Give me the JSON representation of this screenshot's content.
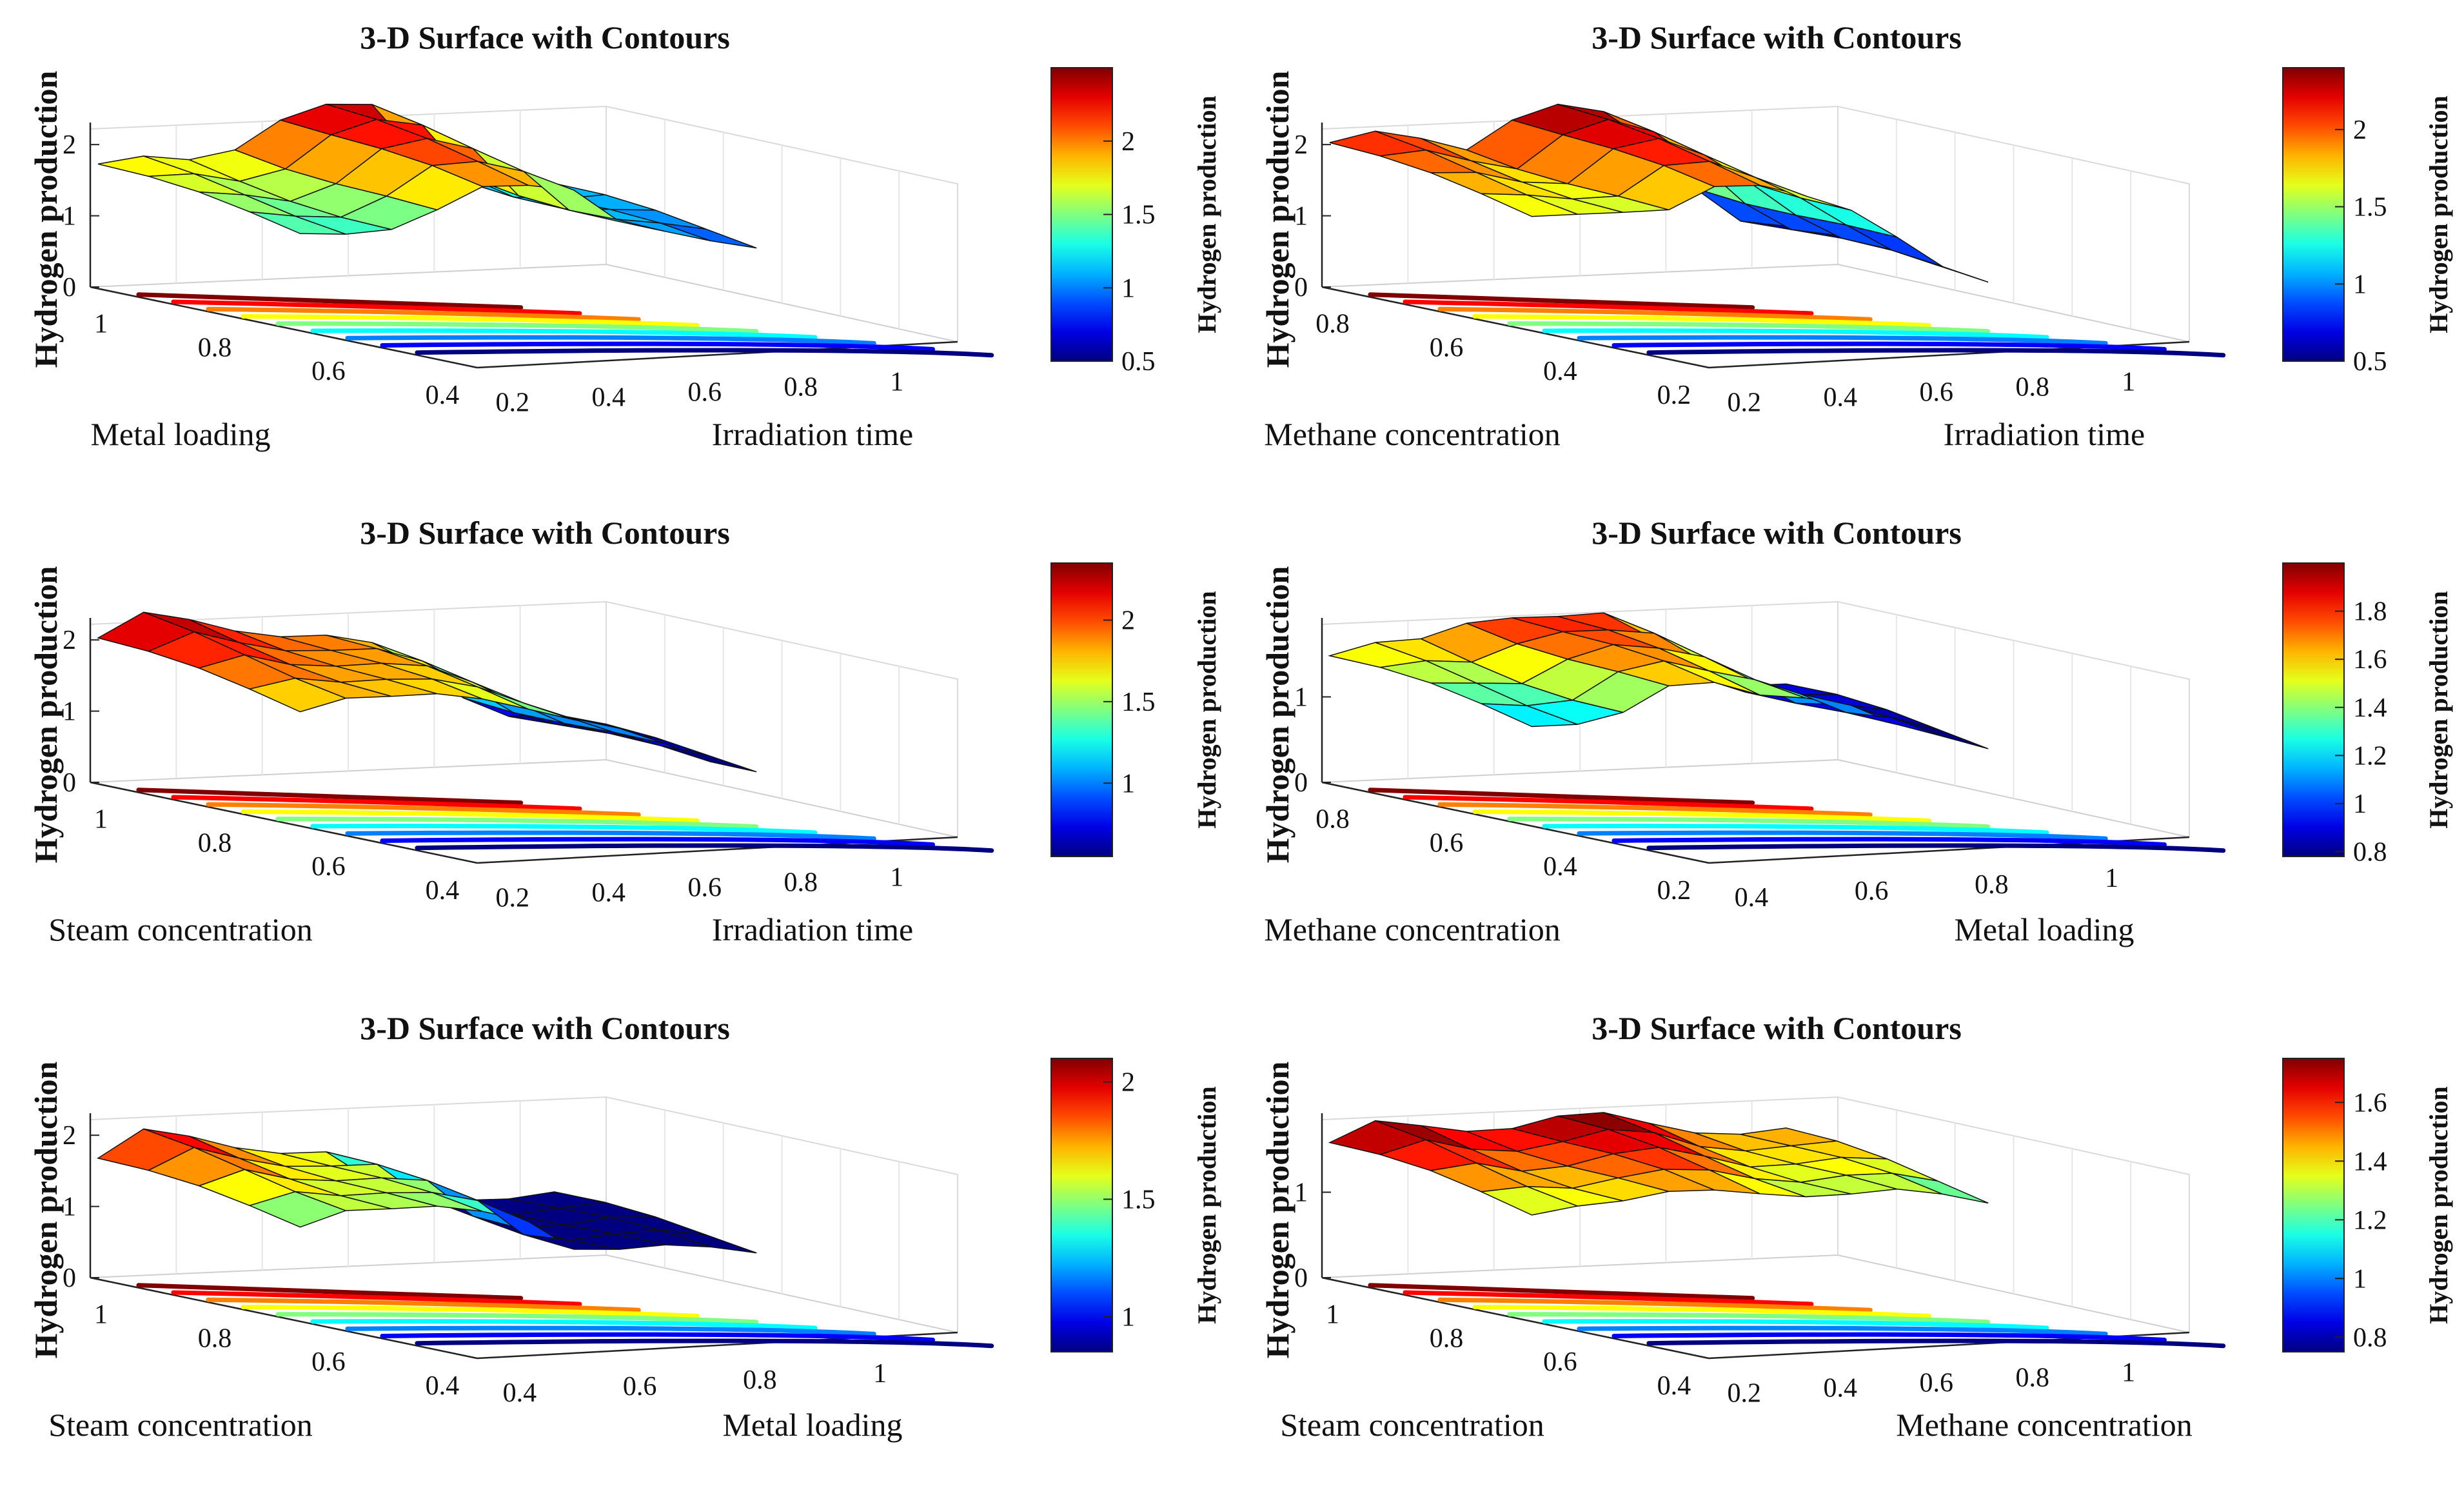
{
  "chart_data": [
    {
      "type": "surface-contour",
      "title": "3-D Surface with Contours",
      "xlabel": "Metal loading",
      "ylabel": "Irradiation time",
      "zlabel": "Hydrogen production",
      "colorbar_label": "Hydrogen production",
      "x_ticks": [
        "1",
        "0.8",
        "0.6",
        "0.4"
      ],
      "y_ticks": [
        "0.2",
        "0.4",
        "0.6",
        "0.8",
        "1"
      ],
      "z_ticks": [
        "0",
        "1",
        "2"
      ],
      "colorbar_range": [
        0.5,
        2.5
      ],
      "colorbar_ticks": [
        "0.5",
        "1",
        "1.5",
        "2"
      ],
      "zlim": [
        0,
        2.4
      ],
      "surface_levels": [
        1.75,
        1.75,
        1.7,
        1.9,
        2.3,
        2.4,
        2.3,
        1.6,
        1.3,
        1.15,
        1.1
      ]
    },
    {
      "type": "surface-contour",
      "title": "3-D Surface with Contours",
      "xlabel": "Methane concentration",
      "ylabel": "Irradiation time",
      "zlabel": "Hydrogen production",
      "colorbar_label": "Hydrogen production",
      "x_ticks": [
        "0.8",
        "0.6",
        "0.4",
        "0.2"
      ],
      "y_ticks": [
        "0.2",
        "0.4",
        "0.6",
        "0.8",
        "1"
      ],
      "z_ticks": [
        "0",
        "1",
        "2"
      ],
      "colorbar_range": [
        0.5,
        2.4
      ],
      "colorbar_ticks": [
        "0.5",
        "1",
        "1.5",
        "2"
      ],
      "zlim": [
        0,
        2.4
      ],
      "surface_levels": [
        2.05,
        2.1,
        2.0,
        1.9,
        2.3,
        2.4,
        2.2,
        1.8,
        1.2,
        0.7,
        0.5
      ]
    },
    {
      "type": "surface-contour",
      "title": "3-D Surface with Contours",
      "xlabel": "Steam concentration",
      "ylabel": "Irradiation time",
      "zlabel": "Hydrogen production",
      "colorbar_label": "Hydrogen production",
      "x_ticks": [
        "1",
        "0.8",
        "0.6",
        "0.4"
      ],
      "y_ticks": [
        "0.2",
        "0.4",
        "0.6",
        "0.8",
        "1"
      ],
      "z_ticks": [
        "0",
        "1",
        "2"
      ],
      "colorbar_range": [
        0.55,
        2.35
      ],
      "colorbar_ticks": [
        "1",
        "1.5",
        "2"
      ],
      "zlim": [
        0,
        2.4
      ],
      "surface_levels": [
        2.05,
        2.3,
        2.2,
        2.1,
        2.0,
        1.9,
        1.7,
        1.4,
        1.0,
        0.7,
        0.6
      ]
    },
    {
      "type": "surface-contour",
      "title": "3-D Surface with Contours",
      "xlabel": "Methane concentration",
      "ylabel": "Metal loading",
      "zlabel": "Hydrogen production",
      "colorbar_label": "Hydrogen production",
      "x_ticks": [
        "0.8",
        "0.6",
        "0.4",
        "0.2"
      ],
      "y_ticks": [
        "0.4",
        "0.6",
        "0.8",
        "1"
      ],
      "z_ticks": [
        "0",
        "1"
      ],
      "colorbar_range": [
        0.78,
        2.0
      ],
      "colorbar_ticks": [
        "0.8",
        "1",
        "1.2",
        "1.4",
        "1.6",
        "1.8"
      ],
      "zlim": [
        0,
        2.0
      ],
      "surface_levels": [
        1.5,
        1.55,
        1.6,
        1.85,
        1.9,
        1.8,
        1.75,
        1.5,
        1.1,
        0.95,
        0.85
      ]
    },
    {
      "type": "surface-contour",
      "title": "3-D Surface with Contours",
      "xlabel": "Steam concentration",
      "ylabel": "Metal loading",
      "zlabel": "Hydrogen production",
      "colorbar_label": "Hydrogen production",
      "x_ticks": [
        "1",
        "0.8",
        "0.6",
        "0.4"
      ],
      "y_ticks": [
        "0.4",
        "0.6",
        "0.8",
        "1"
      ],
      "z_ticks": [
        "0",
        "1",
        "2"
      ],
      "colorbar_range": [
        0.85,
        2.1
      ],
      "colorbar_ticks": [
        "1",
        "1.5",
        "2"
      ],
      "zlim": [
        0,
        2.4
      ],
      "surface_levels": [
        1.7,
        2.0,
        1.9,
        1.8,
        1.7,
        1.6,
        1.1,
        0.95,
        0.9,
        0.88,
        0.85
      ]
    },
    {
      "type": "surface-contour",
      "title": "3-D Surface with Contours",
      "xlabel": "Steam concentration",
      "ylabel": "Methane concentration",
      "zlabel": "Hydrogen production",
      "colorbar_label": "Hydrogen production",
      "x_ticks": [
        "1",
        "0.8",
        "0.6",
        "0.4"
      ],
      "y_ticks": [
        "0.2",
        "0.4",
        "0.6",
        "0.8",
        "1"
      ],
      "z_ticks": [
        "0",
        "1"
      ],
      "colorbar_range": [
        0.75,
        1.75
      ],
      "colorbar_ticks": [
        "0.8",
        "1",
        "1.2",
        "1.4",
        "1.6"
      ],
      "zlim": [
        0,
        2.0
      ],
      "surface_levels": [
        1.6,
        1.75,
        1.7,
        1.7,
        1.72,
        1.75,
        1.7,
        1.6,
        1.55,
        1.5,
        1.45
      ]
    }
  ]
}
